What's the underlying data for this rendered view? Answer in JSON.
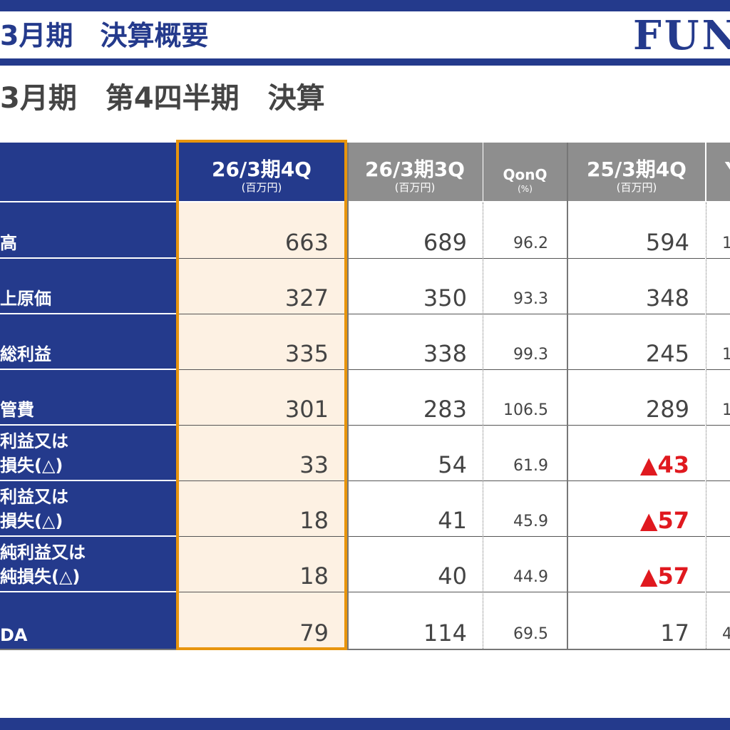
{
  "header": {
    "title": "3月期　決算概要",
    "logo_text": "FUN"
  },
  "subtitle": "3月期　第4四半期　決算",
  "colors": {
    "brand": "#243a8c",
    "highlight_border": "#e8950d",
    "highlight_bg": "#fdf1e3",
    "negative": "#e0191f",
    "header_gray": "#8e8e8e"
  },
  "table": {
    "columns": [
      {
        "label": "26/3期4Q",
        "unit": "(百万円)"
      },
      {
        "label": "26/3期3Q",
        "unit": "(百万円)"
      },
      {
        "label": "QonQ",
        "unit": "(%)"
      },
      {
        "label": "25/3期4Q",
        "unit": "(百万円)"
      },
      {
        "label": "Y",
        "unit": ""
      }
    ],
    "rows": [
      {
        "label_line1": "",
        "label_line2": "高",
        "q4": "663",
        "q3": "689",
        "qonq": "96.2",
        "prev_q4": "594",
        "yoy": "1"
      },
      {
        "label_line1": "",
        "label_line2": "上原価",
        "q4": "327",
        "q3": "350",
        "qonq": "93.3",
        "prev_q4": "348",
        "yoy": ""
      },
      {
        "label_line1": "",
        "label_line2": "総利益",
        "q4": "335",
        "q3": "338",
        "qonq": "99.3",
        "prev_q4": "245",
        "yoy": "1"
      },
      {
        "label_line1": "",
        "label_line2": "管費",
        "q4": "301",
        "q3": "283",
        "qonq": "106.5",
        "prev_q4": "289",
        "yoy": "1"
      },
      {
        "label_line1": "利益又は",
        "label_line2": "損失(△)",
        "q4": "33",
        "q3": "54",
        "qonq": "61.9",
        "prev_q4": "▲43",
        "yoy": ""
      },
      {
        "label_line1": "利益又は",
        "label_line2": "損失(△)",
        "q4": "18",
        "q3": "41",
        "qonq": "45.9",
        "prev_q4": "▲57",
        "yoy": ""
      },
      {
        "label_line1": "純利益又は",
        "label_line2": "純損失(△)",
        "q4": "18",
        "q3": "40",
        "qonq": "44.9",
        "prev_q4": "▲57",
        "yoy": ""
      },
      {
        "label_line1": "",
        "label_line2": "DA",
        "q4": "79",
        "q3": "114",
        "qonq": "69.5",
        "prev_q4": "17",
        "yoy": "4"
      }
    ]
  }
}
